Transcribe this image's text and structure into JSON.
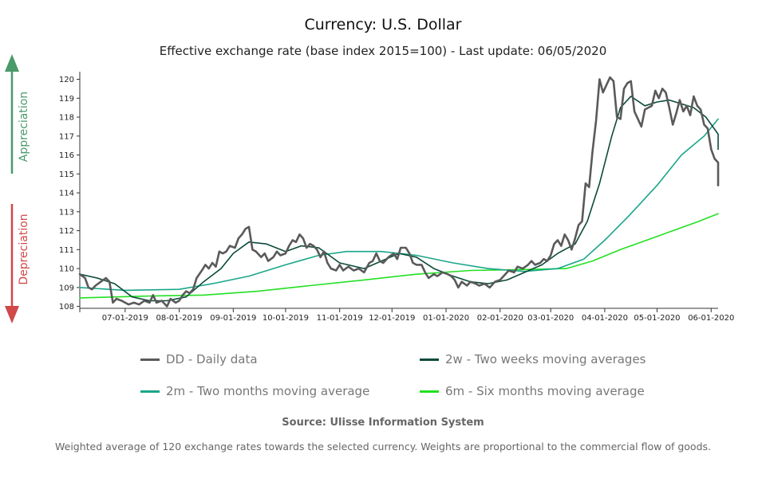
{
  "header": {
    "title": "Currency: U.S. Dollar",
    "subtitle": "Effective exchange rate (base index 2015=100) - Last update: 06/05/2020"
  },
  "side_labels": {
    "appreciation": "Appreciation",
    "depreciation": "Depreciation",
    "appreciation_color": "#4a9a6a",
    "depreciation_color": "#d04848"
  },
  "legend": [
    {
      "key": "dd",
      "label": "DD - Daily data",
      "color": "#5a5a5a"
    },
    {
      "key": "w2",
      "label": "2w - Two weeks moving averages",
      "color": "#0b4a3c"
    },
    {
      "key": "m2",
      "label": "2m - Two months moving average",
      "color": "#1aa68a"
    },
    {
      "key": "m6",
      "label": "6m - Six months moving average",
      "color": "#22e022"
    }
  ],
  "footer": {
    "source": "Source: Ulisse Information System",
    "note": "Weighted average of 120 exchange rates towards the selected currency. Weights are proportional to the commercial flow of goods."
  },
  "chart_data": {
    "type": "line",
    "x_start": "2019-06-05",
    "x_end": "2020-06-05",
    "x_ticks": [
      {
        "date": "2019-07-01",
        "label": "07-01-2019"
      },
      {
        "date": "2019-08-01",
        "label": "08-01-2019"
      },
      {
        "date": "2019-09-01",
        "label": "09-01-2019"
      },
      {
        "date": "2019-10-01",
        "label": "10-01-2019"
      },
      {
        "date": "2019-11-01",
        "label": "11-01-2019"
      },
      {
        "date": "2019-12-01",
        "label": "12-01-2019"
      },
      {
        "date": "2020-01-01",
        "label": "01-01-2020"
      },
      {
        "date": "2020-02-01",
        "label": "02-01-2020"
      },
      {
        "date": "2020-03-01",
        "label": "03-01-2020"
      },
      {
        "date": "2020-04-01",
        "label": "04-01-2020"
      },
      {
        "date": "2020-05-01",
        "label": "05-01-2020"
      },
      {
        "date": "2020-06-01",
        "label": "06-01-2020"
      }
    ],
    "ylim": [
      107.9,
      120.4
    ],
    "y_ticks": [
      108,
      109,
      110,
      111,
      112,
      113,
      114,
      115,
      116,
      117,
      118,
      119,
      120
    ],
    "series": [
      {
        "name": "DD - Daily data",
        "color": "#5a5a5a",
        "points": [
          [
            "2019-06-05",
            109.7
          ],
          [
            "2019-06-08",
            109.5
          ],
          [
            "2019-06-10",
            109.0
          ],
          [
            "2019-06-12",
            108.9
          ],
          [
            "2019-06-14",
            109.1
          ],
          [
            "2019-06-17",
            109.3
          ],
          [
            "2019-06-20",
            109.5
          ],
          [
            "2019-06-22",
            109.3
          ],
          [
            "2019-06-24",
            108.2
          ],
          [
            "2019-06-26",
            108.4
          ],
          [
            "2019-06-29",
            108.3
          ],
          [
            "2019-07-01",
            108.2
          ],
          [
            "2019-07-03",
            108.1
          ],
          [
            "2019-07-06",
            108.2
          ],
          [
            "2019-07-09",
            108.1
          ],
          [
            "2019-07-12",
            108.3
          ],
          [
            "2019-07-15",
            108.2
          ],
          [
            "2019-07-17",
            108.6
          ],
          [
            "2019-07-19",
            108.2
          ],
          [
            "2019-07-22",
            108.3
          ],
          [
            "2019-07-25",
            108.0
          ],
          [
            "2019-07-27",
            108.4
          ],
          [
            "2019-07-30",
            108.2
          ],
          [
            "2019-08-01",
            108.3
          ],
          [
            "2019-08-03",
            108.6
          ],
          [
            "2019-08-05",
            108.8
          ],
          [
            "2019-08-07",
            108.7
          ],
          [
            "2019-08-09",
            108.9
          ],
          [
            "2019-08-11",
            109.5
          ],
          [
            "2019-08-14",
            109.9
          ],
          [
            "2019-08-16",
            110.2
          ],
          [
            "2019-08-18",
            110.0
          ],
          [
            "2019-08-20",
            110.3
          ],
          [
            "2019-08-22",
            110.1
          ],
          [
            "2019-08-24",
            110.9
          ],
          [
            "2019-08-26",
            110.8
          ],
          [
            "2019-08-28",
            110.9
          ],
          [
            "2019-08-30",
            111.2
          ],
          [
            "2019-09-02",
            111.1
          ],
          [
            "2019-09-04",
            111.6
          ],
          [
            "2019-09-06",
            111.8
          ],
          [
            "2019-09-08",
            112.1
          ],
          [
            "2019-09-10",
            112.2
          ],
          [
            "2019-09-12",
            111.0
          ],
          [
            "2019-09-14",
            110.9
          ],
          [
            "2019-09-17",
            110.6
          ],
          [
            "2019-09-19",
            110.8
          ],
          [
            "2019-09-21",
            110.4
          ],
          [
            "2019-09-24",
            110.6
          ],
          [
            "2019-09-26",
            110.9
          ],
          [
            "2019-09-28",
            110.7
          ],
          [
            "2019-10-01",
            110.8
          ],
          [
            "2019-10-03",
            111.2
          ],
          [
            "2019-10-05",
            111.5
          ],
          [
            "2019-10-07",
            111.4
          ],
          [
            "2019-10-09",
            111.8
          ],
          [
            "2019-10-11",
            111.6
          ],
          [
            "2019-10-13",
            111.1
          ],
          [
            "2019-10-15",
            111.3
          ],
          [
            "2019-10-17",
            111.2
          ],
          [
            "2019-10-19",
            111.0
          ],
          [
            "2019-10-21",
            110.6
          ],
          [
            "2019-10-23",
            110.9
          ],
          [
            "2019-10-25",
            110.3
          ],
          [
            "2019-10-27",
            110.0
          ],
          [
            "2019-10-30",
            109.9
          ],
          [
            "2019-11-01",
            110.2
          ],
          [
            "2019-11-03",
            109.9
          ],
          [
            "2019-11-06",
            110.1
          ],
          [
            "2019-11-09",
            109.9
          ],
          [
            "2019-11-12",
            110.0
          ],
          [
            "2019-11-15",
            109.8
          ],
          [
            "2019-11-18",
            110.3
          ],
          [
            "2019-11-20",
            110.4
          ],
          [
            "2019-11-22",
            110.8
          ],
          [
            "2019-11-24",
            110.4
          ],
          [
            "2019-11-26",
            110.3
          ],
          [
            "2019-11-29",
            110.6
          ],
          [
            "2019-12-02",
            110.8
          ],
          [
            "2019-12-04",
            110.5
          ],
          [
            "2019-12-06",
            111.1
          ],
          [
            "2019-12-09",
            111.1
          ],
          [
            "2019-12-11",
            110.8
          ],
          [
            "2019-12-13",
            110.3
          ],
          [
            "2019-12-15",
            110.2
          ],
          [
            "2019-12-18",
            110.2
          ],
          [
            "2019-12-20",
            109.8
          ],
          [
            "2019-12-22",
            109.5
          ],
          [
            "2019-12-25",
            109.7
          ],
          [
            "2019-12-27",
            109.6
          ],
          [
            "2019-12-30",
            109.8
          ],
          [
            "2020-01-02",
            109.7
          ],
          [
            "2020-01-04",
            109.6
          ],
          [
            "2020-01-06",
            109.4
          ],
          [
            "2020-01-08",
            109.0
          ],
          [
            "2020-01-10",
            109.3
          ],
          [
            "2020-01-13",
            109.1
          ],
          [
            "2020-01-15",
            109.3
          ],
          [
            "2020-01-18",
            109.2
          ],
          [
            "2020-01-20",
            109.1
          ],
          [
            "2020-01-23",
            109.2
          ],
          [
            "2020-01-26",
            109.0
          ],
          [
            "2020-01-29",
            109.3
          ],
          [
            "2020-02-01",
            109.4
          ],
          [
            "2020-02-04",
            109.7
          ],
          [
            "2020-02-06",
            109.9
          ],
          [
            "2020-02-09",
            109.8
          ],
          [
            "2020-02-11",
            110.1
          ],
          [
            "2020-02-14",
            110.0
          ],
          [
            "2020-02-17",
            110.2
          ],
          [
            "2020-02-19",
            110.4
          ],
          [
            "2020-02-21",
            110.2
          ],
          [
            "2020-02-24",
            110.3
          ],
          [
            "2020-02-26",
            110.5
          ],
          [
            "2020-02-28",
            110.4
          ],
          [
            "2020-03-01",
            110.7
          ],
          [
            "2020-03-03",
            111.3
          ],
          [
            "2020-03-05",
            111.5
          ],
          [
            "2020-03-07",
            111.2
          ],
          [
            "2020-03-09",
            111.8
          ],
          [
            "2020-03-11",
            111.5
          ],
          [
            "2020-03-13",
            111.0
          ],
          [
            "2020-03-15",
            111.6
          ],
          [
            "2020-03-17",
            112.3
          ],
          [
            "2020-03-19",
            112.5
          ],
          [
            "2020-03-21",
            114.5
          ],
          [
            "2020-03-23",
            114.3
          ],
          [
            "2020-03-25",
            116.2
          ],
          [
            "2020-03-27",
            117.8
          ],
          [
            "2020-03-29",
            120.0
          ],
          [
            "2020-03-31",
            119.3
          ],
          [
            "2020-04-02",
            119.7
          ],
          [
            "2020-04-04",
            120.1
          ],
          [
            "2020-04-06",
            119.9
          ],
          [
            "2020-04-08",
            118.0
          ],
          [
            "2020-04-10",
            117.9
          ],
          [
            "2020-04-12",
            119.5
          ],
          [
            "2020-04-14",
            119.8
          ],
          [
            "2020-04-16",
            119.9
          ],
          [
            "2020-04-18",
            118.3
          ],
          [
            "2020-04-20",
            117.9
          ],
          [
            "2020-04-22",
            117.5
          ],
          [
            "2020-04-24",
            118.4
          ],
          [
            "2020-04-26",
            118.5
          ],
          [
            "2020-04-28",
            118.6
          ],
          [
            "2020-04-30",
            119.4
          ],
          [
            "2020-05-02",
            119.0
          ],
          [
            "2020-05-04",
            119.5
          ],
          [
            "2020-05-06",
            119.3
          ],
          [
            "2020-05-08",
            118.5
          ],
          [
            "2020-05-10",
            117.6
          ],
          [
            "2020-05-12",
            118.2
          ],
          [
            "2020-05-14",
            118.9
          ],
          [
            "2020-05-16",
            118.3
          ],
          [
            "2020-05-18",
            118.6
          ],
          [
            "2020-05-20",
            118.1
          ],
          [
            "2020-05-22",
            119.1
          ],
          [
            "2020-05-24",
            118.6
          ],
          [
            "2020-05-26",
            118.4
          ],
          [
            "2020-05-28",
            117.6
          ],
          [
            "2020-05-30",
            117.4
          ],
          [
            "2020-06-01",
            116.3
          ],
          [
            "2020-06-03",
            115.8
          ],
          [
            "2020-06-05",
            115.6
          ],
          [
            "2020-06-07",
            114.8
          ],
          [
            "2020-06-09",
            114.4
          ]
        ]
      },
      {
        "name": "2w - Two weeks moving averages",
        "color": "#0b4a3c",
        "points": [
          [
            "2019-06-05",
            109.7
          ],
          [
            "2019-06-15",
            109.5
          ],
          [
            "2019-06-25",
            109.2
          ],
          [
            "2019-07-05",
            108.5
          ],
          [
            "2019-07-15",
            108.3
          ],
          [
            "2019-07-25",
            108.3
          ],
          [
            "2019-08-05",
            108.5
          ],
          [
            "2019-08-15",
            109.3
          ],
          [
            "2019-08-25",
            110.0
          ],
          [
            "2019-09-01",
            110.8
          ],
          [
            "2019-09-10",
            111.4
          ],
          [
            "2019-09-20",
            111.3
          ],
          [
            "2019-10-01",
            110.9
          ],
          [
            "2019-10-10",
            111.2
          ],
          [
            "2019-10-20",
            111.1
          ],
          [
            "2019-11-01",
            110.3
          ],
          [
            "2019-11-15",
            110.0
          ],
          [
            "2019-11-25",
            110.4
          ],
          [
            "2019-12-05",
            110.8
          ],
          [
            "2019-12-15",
            110.6
          ],
          [
            "2019-12-25",
            110.0
          ],
          [
            "2020-01-05",
            109.6
          ],
          [
            "2020-01-15",
            109.3
          ],
          [
            "2020-01-25",
            109.2
          ],
          [
            "2020-02-05",
            109.4
          ],
          [
            "2020-02-15",
            109.8
          ],
          [
            "2020-02-25",
            110.2
          ],
          [
            "2020-03-05",
            110.8
          ],
          [
            "2020-03-15",
            111.3
          ],
          [
            "2020-03-22",
            112.5
          ],
          [
            "2020-03-29",
            114.5
          ],
          [
            "2020-04-05",
            117.0
          ],
          [
            "2020-04-10",
            118.5
          ],
          [
            "2020-04-16",
            119.1
          ],
          [
            "2020-04-24",
            118.6
          ],
          [
            "2020-05-01",
            118.8
          ],
          [
            "2020-05-08",
            118.9
          ],
          [
            "2020-05-15",
            118.7
          ],
          [
            "2020-05-22",
            118.5
          ],
          [
            "2020-05-29",
            118.0
          ],
          [
            "2020-06-05",
            117.1
          ],
          [
            "2020-06-09",
            116.3
          ]
        ]
      },
      {
        "name": "2m - Two months moving average",
        "color": "#1aa68a",
        "points": [
          [
            "2019-06-05",
            109.0
          ],
          [
            "2019-07-01",
            108.85
          ],
          [
            "2019-08-01",
            108.9
          ],
          [
            "2019-08-20",
            109.2
          ],
          [
            "2019-09-10",
            109.6
          ],
          [
            "2019-10-01",
            110.2
          ],
          [
            "2019-10-20",
            110.7
          ],
          [
            "2019-11-05",
            110.9
          ],
          [
            "2019-11-25",
            110.9
          ],
          [
            "2019-12-15",
            110.7
          ],
          [
            "2020-01-05",
            110.3
          ],
          [
            "2020-01-25",
            110.0
          ],
          [
            "2020-02-15",
            109.85
          ],
          [
            "2020-03-05",
            110.0
          ],
          [
            "2020-03-20",
            110.5
          ],
          [
            "2020-04-01",
            111.5
          ],
          [
            "2020-04-15",
            112.8
          ],
          [
            "2020-05-01",
            114.4
          ],
          [
            "2020-05-15",
            116.0
          ],
          [
            "2020-05-28",
            117.0
          ],
          [
            "2020-06-09",
            117.9
          ]
        ]
      },
      {
        "name": "6m - Six months moving average",
        "color": "#22e022",
        "points": [
          [
            "2019-06-05",
            108.45
          ],
          [
            "2019-07-15",
            108.55
          ],
          [
            "2019-08-15",
            108.6
          ],
          [
            "2019-09-15",
            108.8
          ],
          [
            "2019-10-15",
            109.1
          ],
          [
            "2019-11-15",
            109.4
          ],
          [
            "2019-12-15",
            109.7
          ],
          [
            "2020-01-15",
            109.9
          ],
          [
            "2020-02-15",
            109.95
          ],
          [
            "2020-03-10",
            110.0
          ],
          [
            "2020-03-25",
            110.4
          ],
          [
            "2020-04-10",
            111.0
          ],
          [
            "2020-04-25",
            111.5
          ],
          [
            "2020-05-10",
            112.0
          ],
          [
            "2020-05-25",
            112.5
          ],
          [
            "2020-06-09",
            112.9
          ]
        ]
      }
    ]
  }
}
